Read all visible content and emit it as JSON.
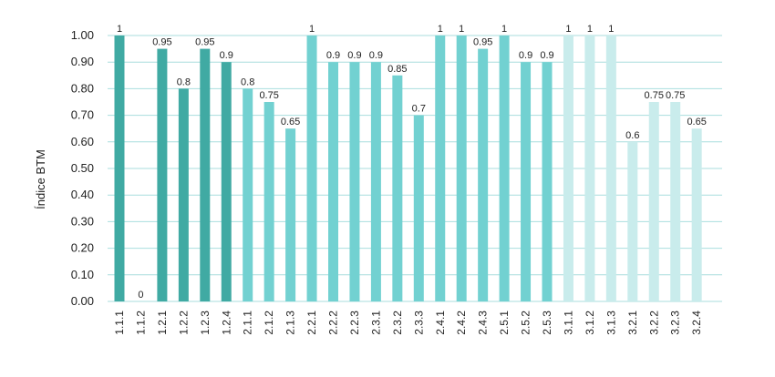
{
  "chart_data": {
    "type": "bar",
    "ylabel": "Índice BTM",
    "ylim": [
      0,
      1
    ],
    "y_ticks": [
      "0.00",
      "0.10",
      "0.20",
      "0.30",
      "0.40",
      "0.50",
      "0.60",
      "0.70",
      "0.80",
      "0.90",
      "1.00"
    ],
    "grid": true,
    "categories": [
      "1.1.1",
      "1.1.2",
      "1.2.1",
      "1.2.2",
      "1.2.3",
      "1.2.4",
      "2.1.1",
      "2.1.2",
      "2.1.3",
      "2.2.1",
      "2.2.2",
      "2.2.3",
      "2.3.1",
      "2.3.2",
      "2.3.3",
      "2.4.1",
      "2.4.2",
      "2.4.3",
      "2.5.1",
      "2.5.2",
      "2.5.3",
      "3.1.1",
      "3.1.2",
      "3.1.3",
      "3.2.1",
      "3.2.2",
      "3.2.3",
      "3.2.4"
    ],
    "values": [
      1,
      0,
      0.95,
      0.8,
      0.95,
      0.9,
      0.8,
      0.75,
      0.65,
      1,
      0.9,
      0.9,
      0.9,
      0.85,
      0.7,
      1,
      1,
      0.95,
      1,
      0.9,
      0.9,
      1,
      1,
      1,
      0.6,
      0.75,
      0.75,
      0.65
    ],
    "data_labels": [
      "1",
      "0",
      "0.95",
      "0.8",
      "0.95",
      "0.9",
      "0.8",
      "0.75",
      "0.65",
      "1",
      "0.9",
      "0.9",
      "0.9",
      "0.85",
      "0.7",
      "1",
      "1",
      "0.95",
      "1",
      "0.9",
      "0.9",
      "1",
      "1",
      "1",
      "0.6",
      "0.75",
      "0.75",
      "0.65"
    ],
    "bar_colors": [
      "#40aaa3",
      "#40aaa3",
      "#40aaa3",
      "#40aaa3",
      "#40aaa3",
      "#40aaa3",
      "#72d1d1",
      "#72d1d1",
      "#72d1d1",
      "#72d1d1",
      "#72d1d1",
      "#72d1d1",
      "#72d1d1",
      "#72d1d1",
      "#72d1d1",
      "#72d1d1",
      "#72d1d1",
      "#72d1d1",
      "#72d1d1",
      "#72d1d1",
      "#72d1d1",
      "#c9ecec",
      "#c9ecec",
      "#c9ecec",
      "#c9ecec",
      "#c9ecec",
      "#c9ecec",
      "#c9ecec"
    ],
    "grid_color": "#a9dede"
  }
}
